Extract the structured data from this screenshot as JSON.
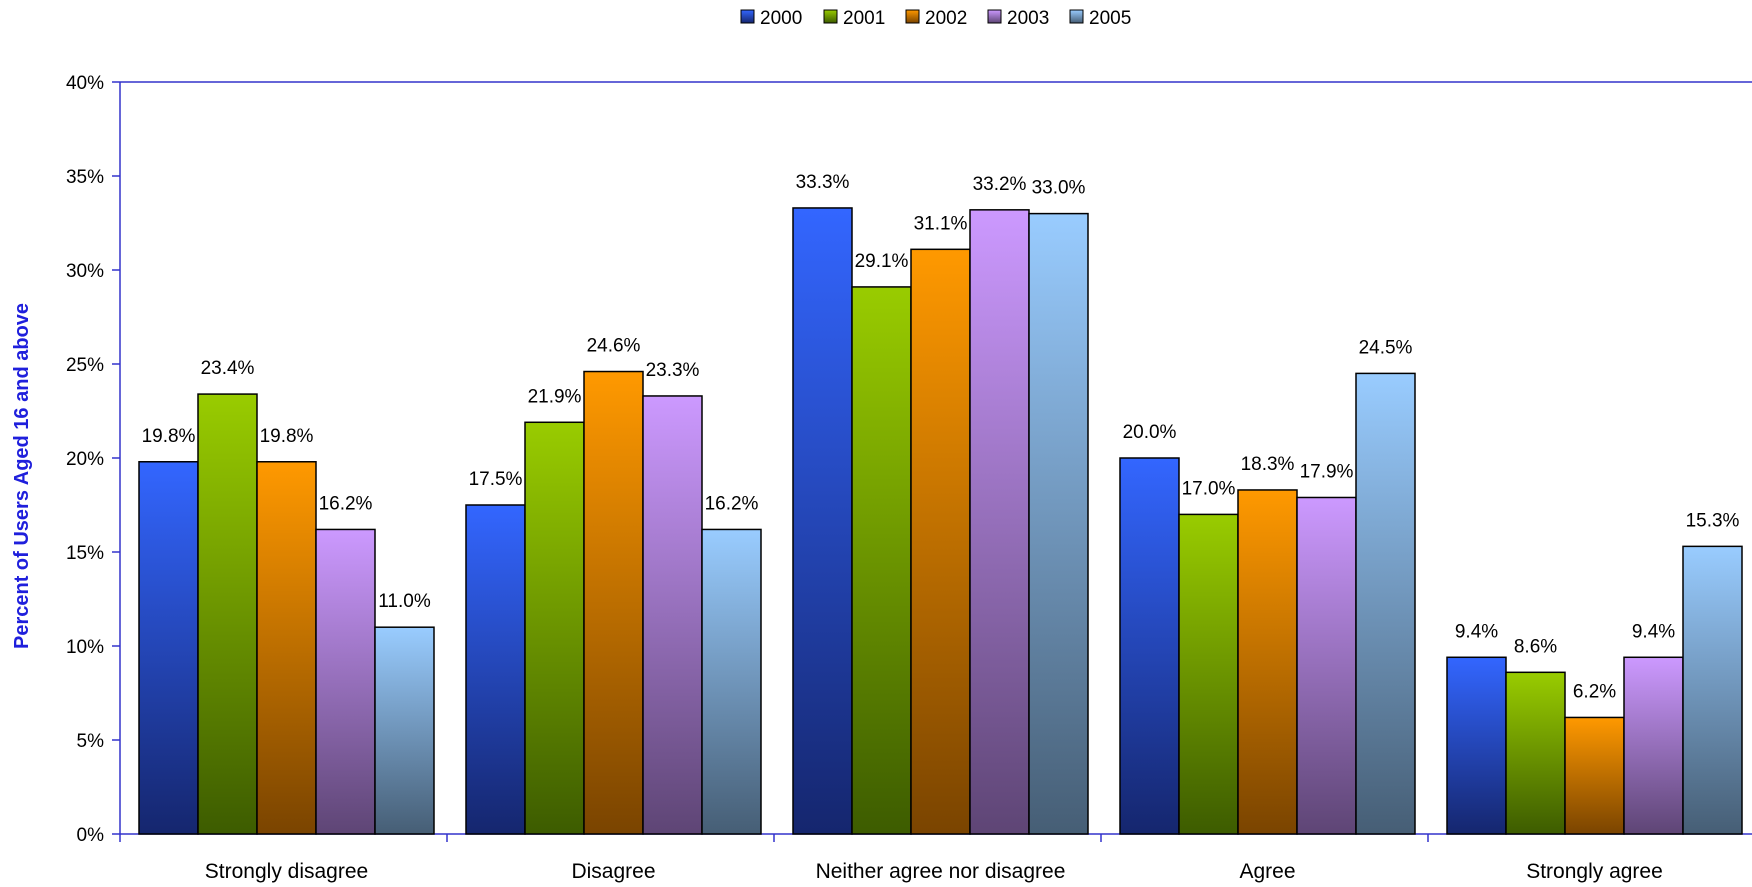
{
  "chart_data": {
    "type": "bar",
    "ylabel": "Percent of Users Aged 16 and above",
    "ylim": [
      0,
      40
    ],
    "yticks": [
      "0%",
      "5%",
      "10%",
      "15%",
      "20%",
      "25%",
      "30%",
      "35%",
      "40%"
    ],
    "categories": [
      "Strongly disagree",
      "Disagree",
      "Neither agree nor disagree",
      "Agree",
      "Strongly agree"
    ],
    "legend_position": "top-center",
    "grid": false,
    "series": [
      {
        "name": "2000",
        "values": [
          19.8,
          17.5,
          33.3,
          20.0,
          9.4
        ],
        "labels": [
          "19.8%",
          "17.5%",
          "33.3%",
          "20.0%",
          "9.4%"
        ],
        "color_top": "#3366ff",
        "color_bottom": "#15266e"
      },
      {
        "name": "2001",
        "values": [
          23.4,
          21.9,
          29.1,
          17.0,
          8.6
        ],
        "labels": [
          "23.4%",
          "21.9%",
          "29.1%",
          "17.0%",
          "8.6%"
        ],
        "color_top": "#99cc00",
        "color_bottom": "#3d5c00"
      },
      {
        "name": "2002",
        "values": [
          19.8,
          24.6,
          31.1,
          18.3,
          6.2
        ],
        "labels": [
          "19.8%",
          "24.6%",
          "31.1%",
          "18.3%",
          "6.2%"
        ],
        "color_top": "#ff9900",
        "color_bottom": "#7a4400"
      },
      {
        "name": "2003",
        "values": [
          16.2,
          23.3,
          33.2,
          17.9,
          9.4
        ],
        "labels": [
          "16.2%",
          "23.3%",
          "33.2%",
          "17.9%",
          "9.4%"
        ],
        "color_top": "#cc99ff",
        "color_bottom": "#5e4575"
      },
      {
        "name": "2005",
        "values": [
          11.0,
          16.2,
          33.0,
          24.5,
          15.3
        ],
        "labels": [
          "11.0%",
          "16.2%",
          "33.0%",
          "24.5%",
          "15.3%"
        ],
        "color_top": "#99ccff",
        "color_bottom": "#465e75"
      }
    ],
    "axis_color": "#3333cc"
  }
}
